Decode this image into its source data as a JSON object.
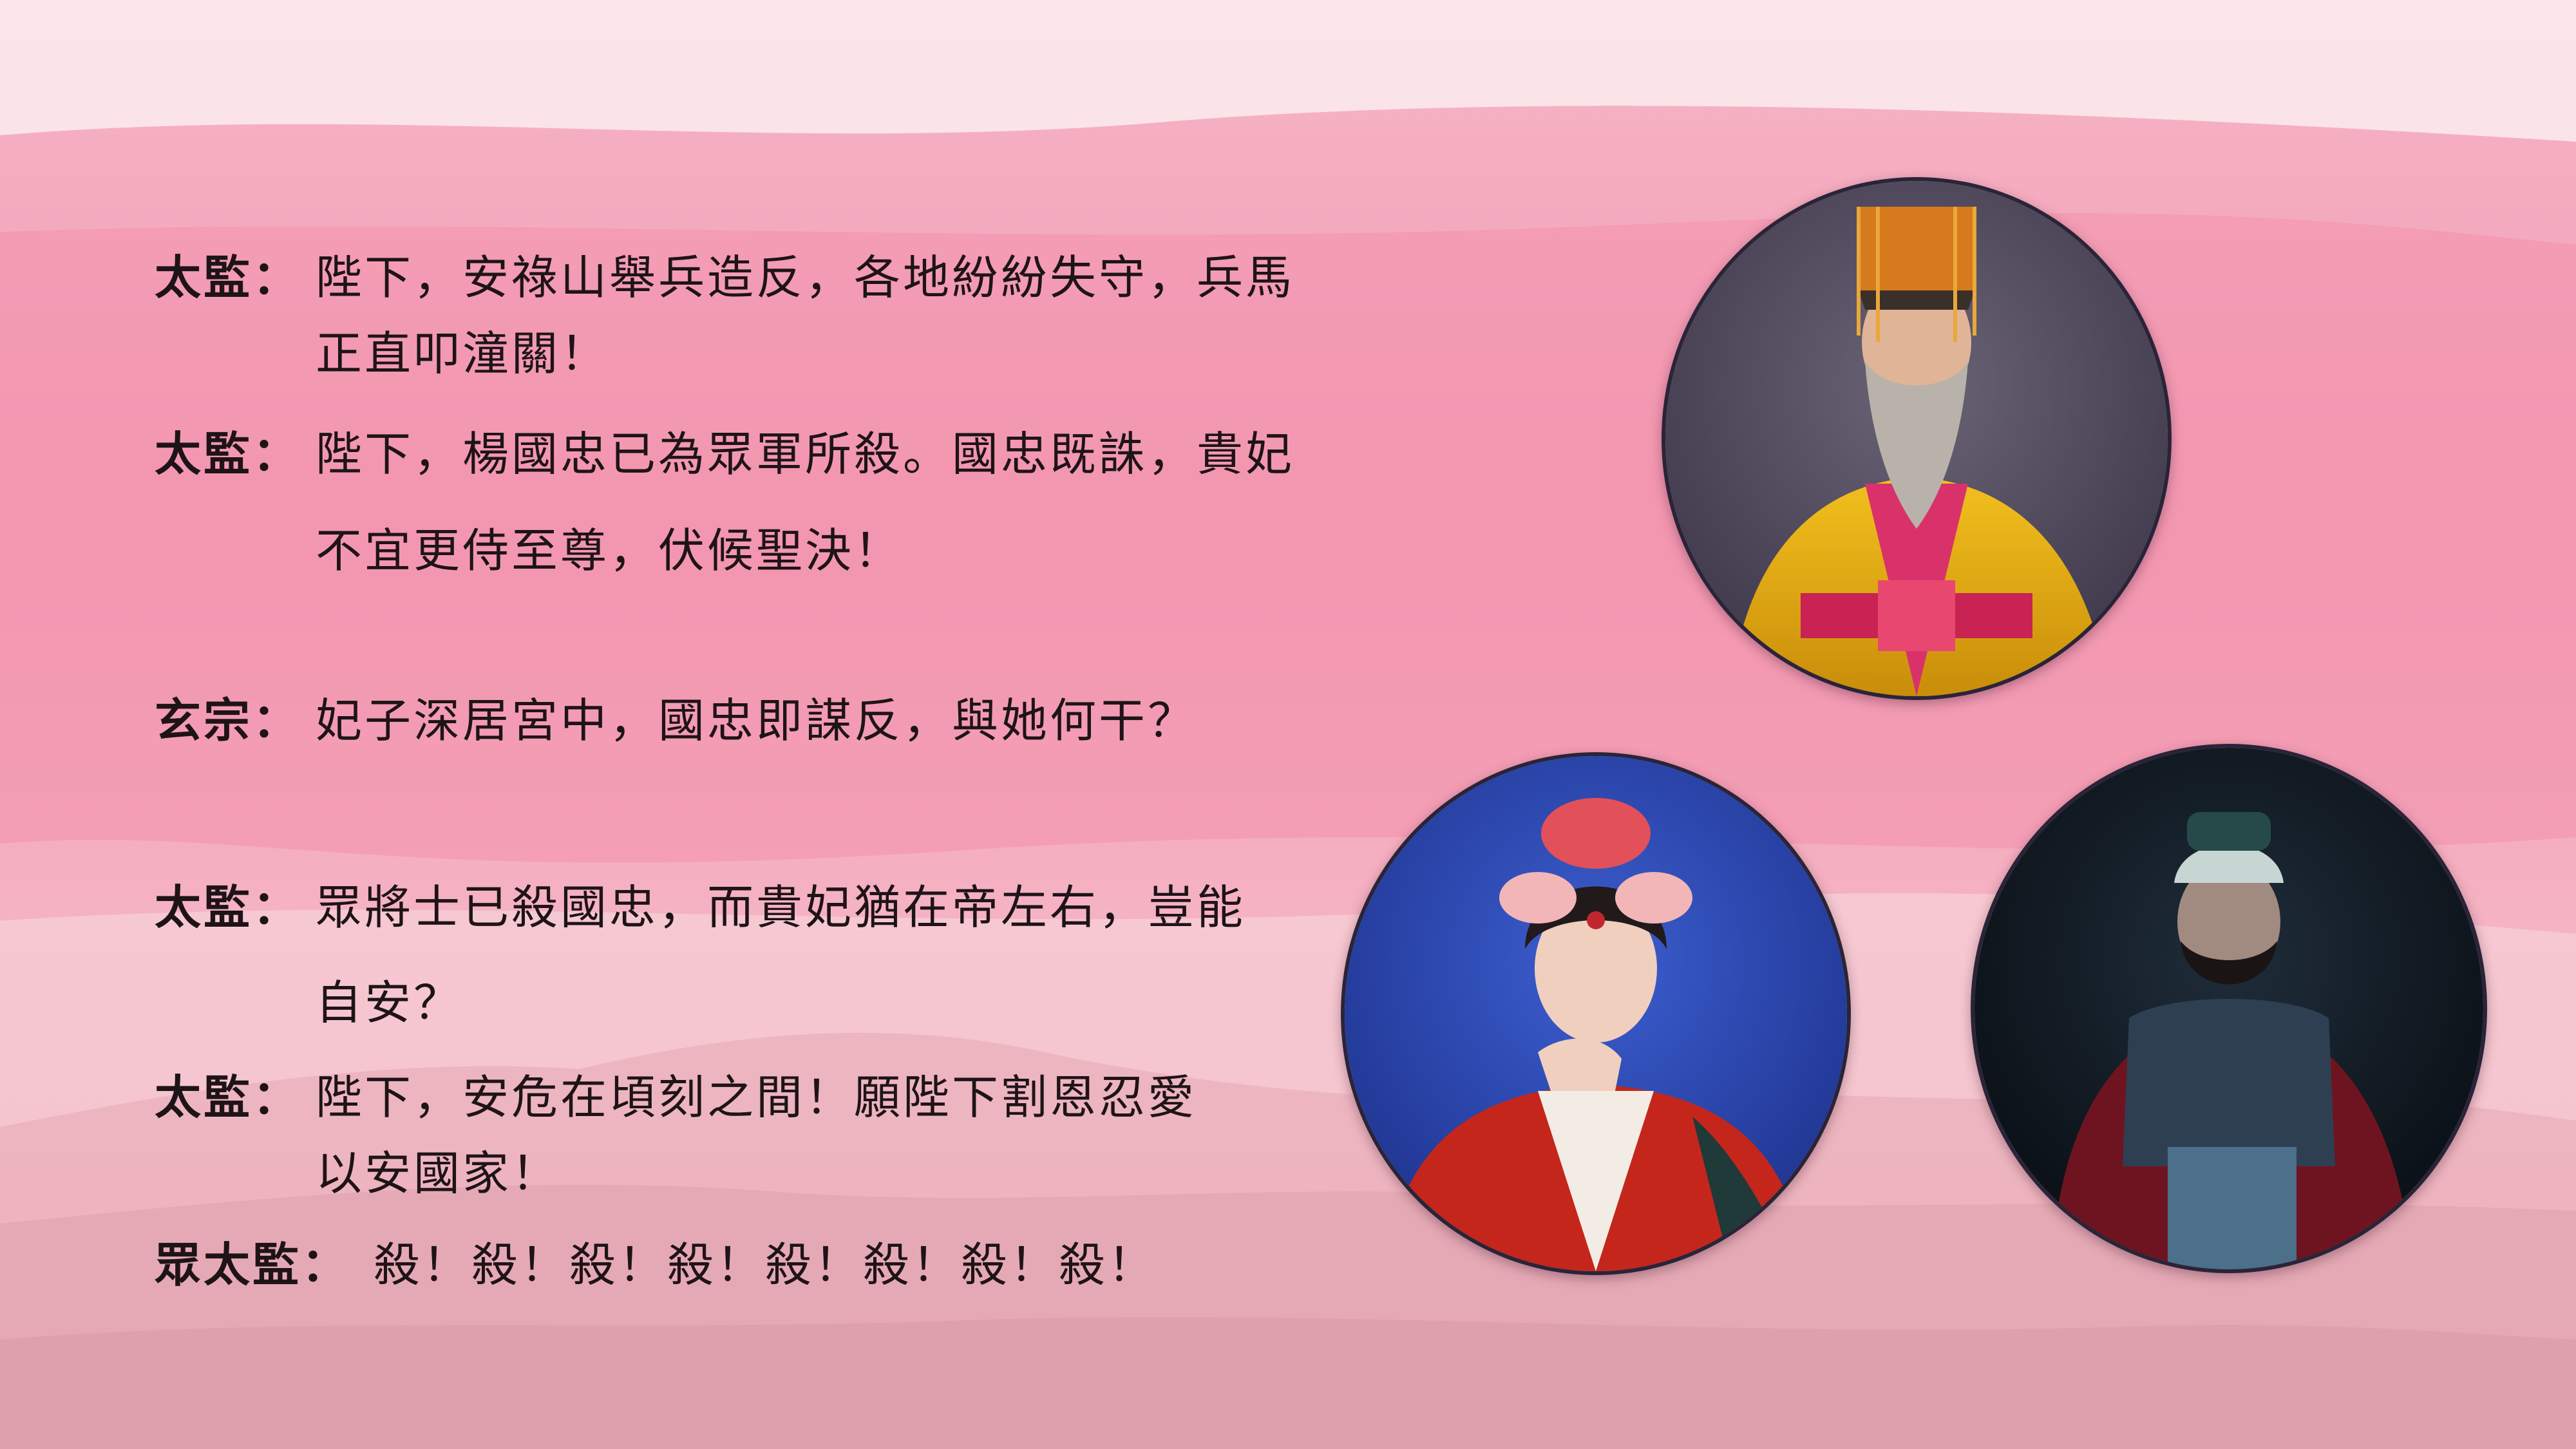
{
  "dialogue": [
    {
      "speaker": "太監",
      "colon": "：",
      "text": "陛下，安祿山舉兵造反，各地紛紛失守，兵馬\n正直叩潼關！"
    },
    {
      "speaker": "太監",
      "colon": "：",
      "text": "陛下，楊國忠已為眾軍所殺。國忠既誅，貴妃\n不宜更侍至尊，伏候聖決！"
    },
    {
      "speaker": "玄宗",
      "colon": "：",
      "text": "妃子深居宮中，國忠即謀反，與她何干？"
    },
    {
      "speaker": "太監",
      "colon": "：",
      "text": "眾將士已殺國忠，而貴妃猶在帝左右，豈能\n自安？"
    },
    {
      "speaker": "太監",
      "colon": "：",
      "text": "陛下，安危在頃刻之間！願陛下割恩忍愛\n以安國家！"
    },
    {
      "speaker": "眾太監",
      "colon": "：",
      "text": "殺！殺！殺！殺！殺！殺！殺！殺！"
    }
  ],
  "colors": {
    "band_pink": "#f3a3b9",
    "band_light": "#f9d7de",
    "mountain": "#e2a6b2",
    "text": "#1e1418"
  }
}
